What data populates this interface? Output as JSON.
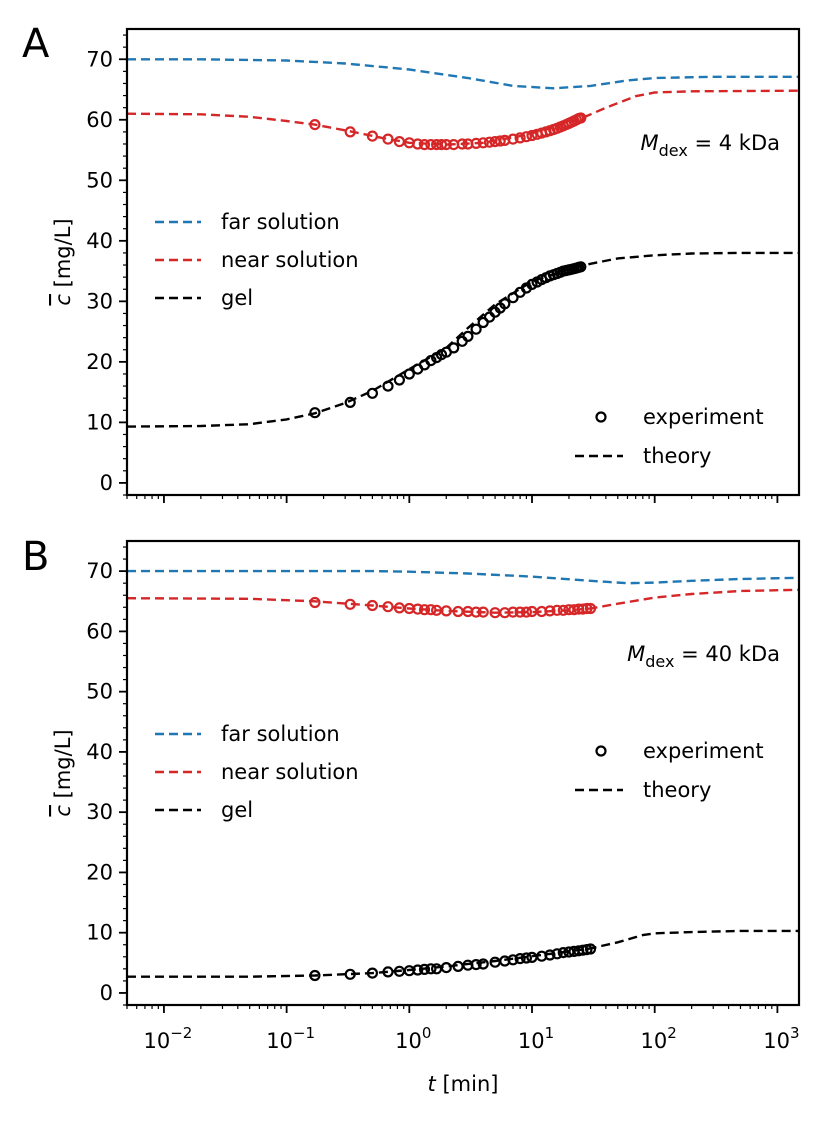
{
  "chart_data": [
    {
      "type": "line",
      "panel_label": "A",
      "annotation_symbol": "M",
      "annotation_sub": "dex",
      "annotation_value": " = 4 kDa",
      "ylabel_symbol": "c",
      "ylabel_unit": " [mg/L]",
      "xlabel_symbol": "t",
      "xlabel_unit": " [min]",
      "xscale": "log",
      "xlim": [
        0.005,
        1500
      ],
      "ylim": [
        -2,
        75
      ],
      "yticks": [
        0,
        10,
        20,
        30,
        40,
        50,
        60,
        70
      ],
      "ytick_labels": [
        "0",
        "10",
        "20",
        "30",
        "40",
        "50",
        "60",
        "70"
      ],
      "legend_series": [
        {
          "label": "far solution",
          "color": "#1f77b4"
        },
        {
          "label": "near solution",
          "color": "#d62728"
        },
        {
          "label": "gel",
          "color": "#000000"
        }
      ],
      "legend_style": [
        {
          "label": "experiment",
          "marker": "circle"
        },
        {
          "label": "theory",
          "marker": "dash"
        }
      ],
      "legend_style_position": "lower-right",
      "series": [
        {
          "name": "far solution",
          "kind": "theory",
          "color": "#1f77b4",
          "x": [
            0.005,
            0.02,
            0.1,
            0.3,
            1,
            3,
            7,
            15,
            30,
            60,
            100,
            300,
            1500
          ],
          "y": [
            70,
            70,
            69.8,
            69.3,
            68.3,
            66.9,
            65.6,
            65.2,
            65.6,
            66.5,
            66.9,
            67.1,
            67.1
          ]
        },
        {
          "name": "near solution",
          "kind": "theory",
          "color": "#d62728",
          "x": [
            0.005,
            0.02,
            0.05,
            0.1,
            0.17,
            0.33,
            0.6,
            1,
            2,
            4,
            8,
            15,
            25,
            40,
            70,
            100,
            200,
            1500
          ],
          "y": [
            61,
            60.9,
            60.5,
            59.8,
            59.2,
            58.1,
            57.0,
            56.2,
            55.9,
            56.2,
            57.3,
            58.7,
            60.2,
            62.0,
            63.9,
            64.5,
            64.7,
            64.8
          ]
        },
        {
          "name": "near solution",
          "kind": "experiment",
          "color": "#d62728",
          "x": [
            0.17,
            0.33,
            0.5,
            0.67,
            0.83,
            1,
            1.17,
            1.33,
            1.5,
            1.67,
            1.83,
            2,
            2.3,
            2.7,
            3,
            3.5,
            4,
            4.5,
            5,
            5.5,
            6,
            7,
            8,
            9,
            10,
            11,
            12,
            13,
            14,
            15,
            16,
            17,
            18,
            19,
            20,
            21,
            22,
            23,
            24,
            25
          ],
          "y": [
            59.2,
            58.0,
            57.3,
            56.8,
            56.4,
            56.2,
            56.0,
            55.9,
            55.9,
            55.9,
            55.9,
            55.9,
            55.9,
            56.0,
            56.0,
            56.1,
            56.2,
            56.3,
            56.4,
            56.5,
            56.6,
            56.8,
            57.0,
            57.2,
            57.4,
            57.6,
            57.8,
            58.0,
            58.2,
            58.4,
            58.6,
            58.8,
            59.0,
            59.2,
            59.4,
            59.6,
            59.8,
            60.0,
            60.2,
            60.3
          ]
        },
        {
          "name": "gel",
          "kind": "theory",
          "color": "#000000",
          "x": [
            0.005,
            0.02,
            0.05,
            0.1,
            0.17,
            0.3,
            0.5,
            1,
            2,
            3,
            5,
            10,
            20,
            30,
            50,
            100,
            200,
            500,
            1500
          ],
          "y": [
            9.3,
            9.4,
            9.7,
            10.5,
            11.5,
            13.2,
            15.2,
            18.8,
            22.3,
            25.6,
            29.5,
            33.3,
            35.3,
            36.2,
            37.1,
            37.6,
            37.9,
            38.0,
            38.0
          ]
        },
        {
          "name": "gel",
          "kind": "experiment",
          "color": "#000000",
          "x": [
            0.17,
            0.33,
            0.5,
            0.67,
            0.83,
            1,
            1.17,
            1.33,
            1.5,
            1.67,
            1.83,
            2,
            2.3,
            2.7,
            3,
            3.5,
            4,
            4.5,
            5,
            5.5,
            6,
            7,
            8,
            9,
            10,
            11,
            12,
            13,
            14,
            15,
            16,
            17,
            18,
            19,
            20,
            21,
            22,
            23,
            24,
            25
          ],
          "y": [
            11.6,
            13.3,
            14.8,
            16.0,
            17.0,
            18.0,
            18.8,
            19.5,
            20.2,
            20.7,
            21.2,
            21.6,
            22.3,
            23.4,
            24.2,
            25.4,
            26.5,
            27.4,
            28.2,
            28.9,
            29.6,
            30.6,
            31.5,
            32.2,
            32.8,
            33.2,
            33.6,
            33.9,
            34.2,
            34.4,
            34.6,
            34.8,
            35.0,
            35.1,
            35.2,
            35.3,
            35.4,
            35.5,
            35.6,
            35.7
          ]
        }
      ]
    },
    {
      "type": "line",
      "panel_label": "B",
      "annotation_symbol": "M",
      "annotation_sub": "dex",
      "annotation_value": " = 40 kDa",
      "ylabel_symbol": "c",
      "ylabel_unit": " [mg/L]",
      "xlabel_symbol": "t",
      "xlabel_unit": " [min]",
      "xscale": "log",
      "xlim": [
        0.005,
        1500
      ],
      "ylim": [
        -2,
        75
      ],
      "yticks": [
        0,
        10,
        20,
        30,
        40,
        50,
        60,
        70
      ],
      "ytick_labels": [
        "0",
        "10",
        "20",
        "30",
        "40",
        "50",
        "60",
        "70"
      ],
      "xtick_base": "10",
      "xtick_exponents": [
        "−2",
        "−1",
        "0",
        "1",
        "2",
        "3"
      ],
      "legend_series": [
        {
          "label": "far solution",
          "color": "#1f77b4"
        },
        {
          "label": "near solution",
          "color": "#d62728"
        },
        {
          "label": "gel",
          "color": "#000000"
        }
      ],
      "legend_style": [
        {
          "label": "experiment",
          "marker": "circle"
        },
        {
          "label": "theory",
          "marker": "dash"
        }
      ],
      "legend_style_position": "middle-right",
      "series": [
        {
          "name": "far solution",
          "kind": "theory",
          "color": "#1f77b4",
          "x": [
            0.005,
            0.1,
            0.5,
            1,
            3,
            10,
            30,
            60,
            100,
            200,
            500,
            1500
          ],
          "y": [
            70,
            70,
            70,
            69.9,
            69.6,
            69.1,
            68.4,
            68.0,
            68.1,
            68.4,
            68.7,
            68.9
          ]
        },
        {
          "name": "near solution",
          "kind": "theory",
          "color": "#d62728",
          "x": [
            0.005,
            0.05,
            0.17,
            0.5,
            1,
            2,
            5,
            10,
            20,
            30,
            50,
            100,
            200,
            500,
            1500
          ],
          "y": [
            65.5,
            65.4,
            65.0,
            64.3,
            63.8,
            63.4,
            63.1,
            63.2,
            63.5,
            63.8,
            64.6,
            65.6,
            66.2,
            66.7,
            66.9
          ]
        },
        {
          "name": "near solution",
          "kind": "experiment",
          "color": "#d62728",
          "x": [
            0.17,
            0.33,
            0.5,
            0.67,
            0.83,
            1,
            1.17,
            1.33,
            1.5,
            1.67,
            2,
            2.5,
            3,
            3.5,
            4,
            5,
            6,
            7,
            8,
            9,
            10,
            12,
            14,
            16,
            18,
            20,
            22,
            24,
            26,
            28,
            30
          ],
          "y": [
            64.8,
            64.5,
            64.3,
            64.1,
            63.9,
            63.8,
            63.7,
            63.6,
            63.6,
            63.5,
            63.4,
            63.3,
            63.3,
            63.2,
            63.2,
            63.1,
            63.1,
            63.2,
            63.2,
            63.2,
            63.3,
            63.3,
            63.4,
            63.5,
            63.5,
            63.6,
            63.6,
            63.7,
            63.7,
            63.8,
            63.8
          ]
        },
        {
          "name": "gel",
          "kind": "theory",
          "color": "#000000",
          "x": [
            0.005,
            0.05,
            0.17,
            0.5,
            1,
            2,
            5,
            10,
            20,
            30,
            50,
            80,
            100,
            200,
            500,
            1500
          ],
          "y": [
            2.7,
            2.7,
            2.9,
            3.3,
            3.8,
            4.4,
            5.3,
            6.1,
            6.9,
            7.4,
            8.4,
            9.6,
            9.9,
            10.1,
            10.3,
            10.3
          ]
        },
        {
          "name": "gel",
          "kind": "experiment",
          "color": "#000000",
          "x": [
            0.17,
            0.33,
            0.5,
            0.67,
            0.83,
            1,
            1.17,
            1.33,
            1.5,
            1.67,
            2,
            2.5,
            3,
            3.5,
            4,
            5,
            6,
            7,
            8,
            9,
            10,
            12,
            14,
            16,
            18,
            20,
            22,
            24,
            26,
            28,
            30
          ],
          "y": [
            2.9,
            3.1,
            3.3,
            3.5,
            3.6,
            3.7,
            3.8,
            3.9,
            4.0,
            4.0,
            4.2,
            4.4,
            4.6,
            4.7,
            4.8,
            5.1,
            5.3,
            5.5,
            5.7,
            5.8,
            5.9,
            6.1,
            6.3,
            6.5,
            6.7,
            6.8,
            6.9,
            7.0,
            7.1,
            7.2,
            7.3
          ]
        }
      ]
    }
  ]
}
